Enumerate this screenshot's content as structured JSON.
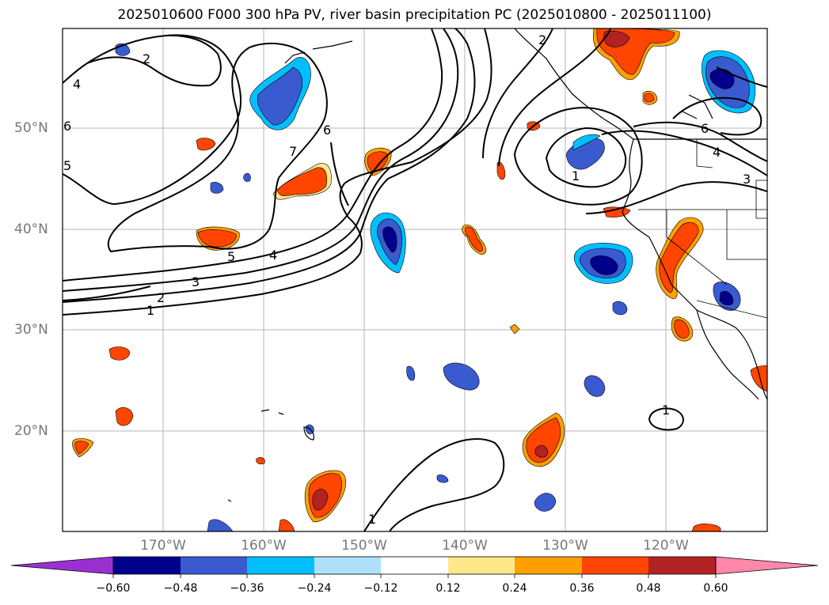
{
  "title": "2025010600 F000 300 hPa PV, river basin precipitation PC (2025010800 - 2025011100)",
  "map": {
    "lon_labels": [
      "170°W",
      "160°W",
      "150°W",
      "140°W",
      "130°W",
      "120°W"
    ],
    "lat_labels": [
      "50°N",
      "40°N",
      "30°N",
      "20°N"
    ],
    "contour_labels": [
      "2",
      "4",
      "5",
      "6",
      "7",
      "6",
      "5",
      "4",
      "3",
      "2",
      "1",
      "1",
      "1",
      "4",
      "3",
      "6",
      "2",
      "1"
    ]
  },
  "colorbar": {
    "ticks": [
      "−0.60",
      "−0.48",
      "−0.36",
      "−0.24",
      "−0.12",
      "0.12",
      "0.24",
      "0.36",
      "0.48",
      "0.60"
    ],
    "colors": [
      "#9b30d0",
      "#00008b",
      "#3a5bd0",
      "#00bfff",
      "#aee0fa",
      "#ffffff",
      "#ffe88a",
      "#ffa000",
      "#ff4500",
      "#b22222",
      "#ff88aa"
    ]
  }
}
